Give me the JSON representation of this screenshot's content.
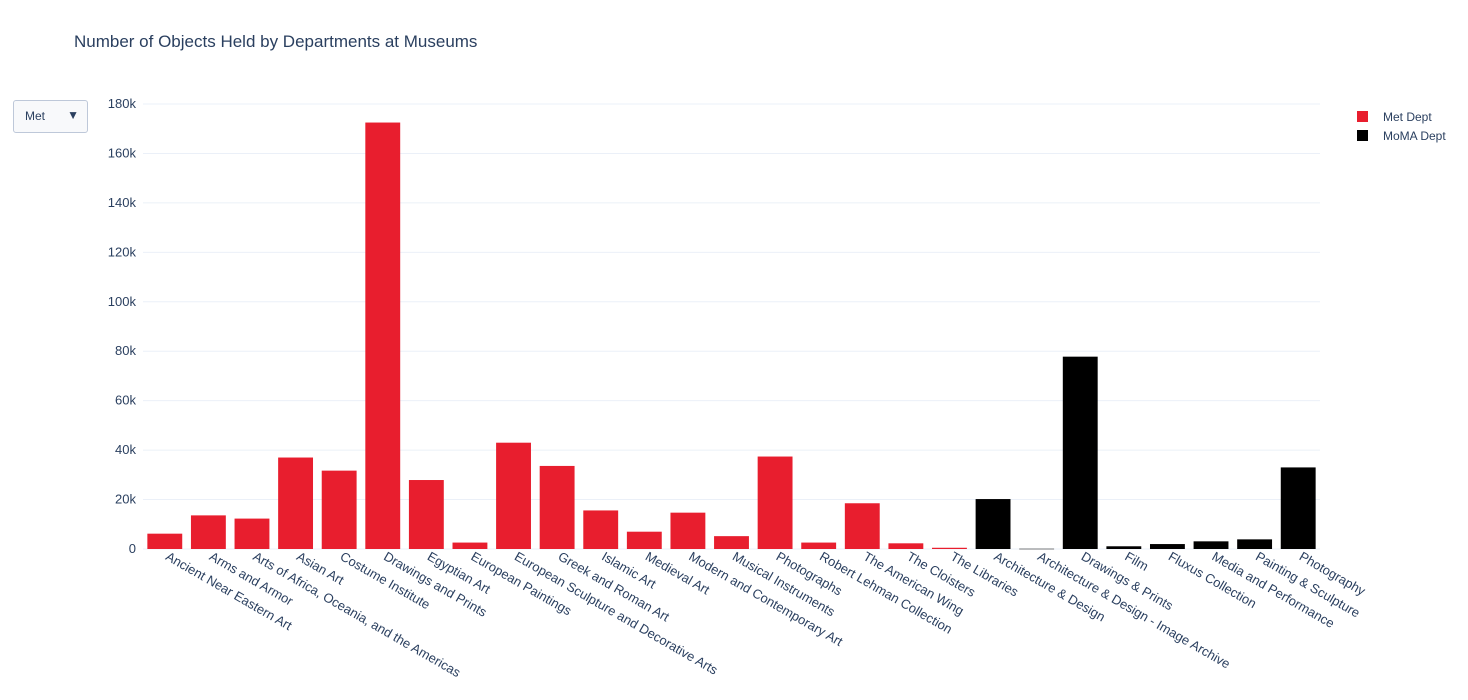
{
  "dropdown": {
    "selected": "Met"
  },
  "chart_data": {
    "type": "bar",
    "title": "Number of Objects Held by Departments at Museums",
    "xlabel": "",
    "ylabel": "",
    "ylim": [
      0,
      180000
    ],
    "yticks": [
      0,
      20000,
      40000,
      60000,
      80000,
      100000,
      120000,
      140000,
      160000,
      180000
    ],
    "ytick_labels": [
      "0",
      "20k",
      "40k",
      "60k",
      "80k",
      "100k",
      "120k",
      "140k",
      "160k",
      "180k"
    ],
    "grid": true,
    "legend_position": "top-right",
    "categories": [
      "Ancient Near Eastern Art",
      "Arms and Armor",
      "Arts of Africa, Oceania, and the Americas",
      "Asian Art",
      "Costume Institute",
      "Drawings and Prints",
      "Egyptian Art",
      "European Paintings",
      "European Sculpture and Decorative Arts",
      "Greek and Roman Art",
      "Islamic Art",
      "Medieval Art",
      "Modern and Contemporary Art",
      "Musical Instruments",
      "Photographs",
      "Robert Lehman Collection",
      "The American Wing",
      "The Cloisters",
      "The Libraries",
      "Architecture & Design",
      "Architecture & Design - Image Archive",
      "Drawings & Prints",
      "Film",
      "Fluxus Collection",
      "Media and Performance",
      "Painting & Sculpture",
      "Photography"
    ],
    "series": [
      {
        "name": "Met Dept",
        "color": "#e81e2e",
        "values": [
          6200,
          13600,
          12300,
          37000,
          31700,
          172500,
          27900,
          2600,
          43000,
          33600,
          15600,
          7000,
          14700,
          5200,
          37400,
          2600,
          18500,
          2300,
          500,
          null,
          null,
          null,
          null,
          null,
          null,
          null,
          null
        ]
      },
      {
        "name": "MoMA Dept",
        "color": "#000000",
        "values": [
          null,
          null,
          null,
          null,
          null,
          null,
          null,
          null,
          null,
          null,
          null,
          null,
          null,
          null,
          null,
          null,
          null,
          null,
          null,
          20200,
          100,
          77800,
          1100,
          2000,
          3100,
          3900,
          33000
        ]
      }
    ]
  }
}
